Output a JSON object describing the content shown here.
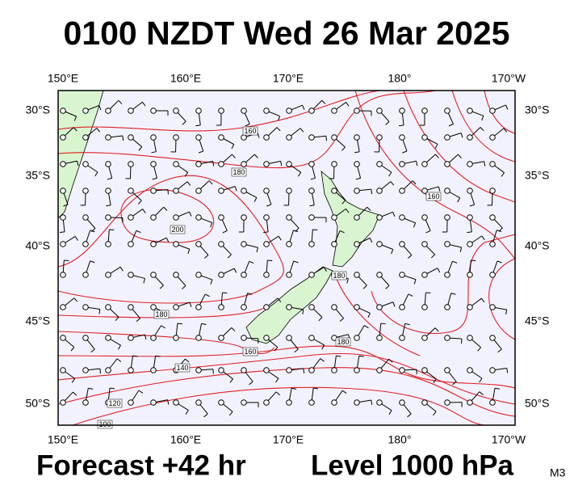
{
  "header": {
    "title": "0100 NZDT Wed 26 Mar 2025"
  },
  "map": {
    "top_labels": [
      "150°E",
      "160°E",
      "170°E",
      "180°",
      "170°W"
    ],
    "bottom_labels": [
      "150°E",
      "160°E",
      "170°E",
      "180°",
      "170°W"
    ],
    "left_labels": [
      "30°S",
      "35°S",
      "40°S",
      "45°S",
      "50°S"
    ],
    "right_labels": [
      "30°S",
      "35°S",
      "40°S",
      "45°S",
      "50°S"
    ],
    "contour_labels": [
      "160",
      "180",
      "200",
      "160",
      "180",
      "180",
      "180",
      "160",
      "140",
      "120",
      "100"
    ]
  },
  "footer": {
    "forecast": "Forecast +42 hr",
    "level": "Level 1000 hPa",
    "code": "M3"
  }
}
